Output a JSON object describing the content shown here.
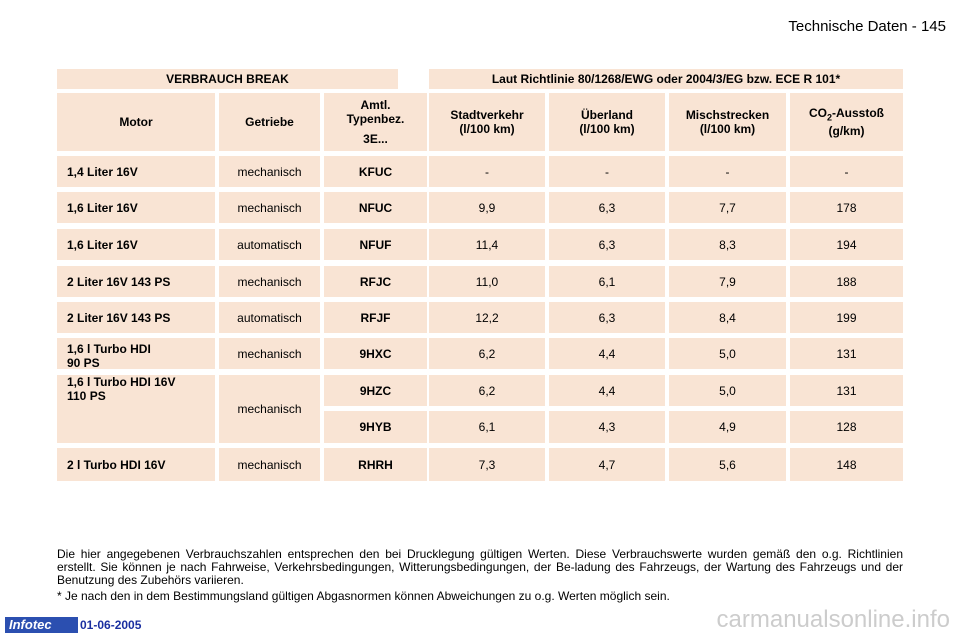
{
  "header": {
    "page_title": "Technische Daten - 145"
  },
  "table": {
    "title": "VERBRAUCH BREAK",
    "standard": "Laut Richtlinie 80/1268/EWG oder 2004/3/EG bzw. ECE R 101*",
    "col_motor": "Motor",
    "col_getriebe": "Getriebe",
    "col_typ_1": "Amtl.",
    "col_typ_2": "Typenbez.",
    "col_typ_3": "3E...",
    "col_stadt_1": "Stadtverkehr",
    "col_stadt_2": "(l/100 km)",
    "col_ueberland_1": "Überland",
    "col_ueberland_2": "(l/100 km)",
    "col_misch_1": "Mischstrecken",
    "col_misch_2": "(l/100 km)",
    "col_co2_pre": "CO",
    "col_co2_sub": "2",
    "col_co2_post": "-Ausstoß",
    "col_co2_2": "(g/km)",
    "rows": [
      {
        "motor": "1,4 Liter 16V",
        "getriebe": "mechanisch",
        "typ": "KFUC",
        "stadt": "-",
        "ueberland": "-",
        "misch": "-",
        "co2": "-"
      },
      {
        "motor": "1,6 Liter 16V",
        "getriebe": "mechanisch",
        "typ": "NFUC",
        "stadt": "9,9",
        "ueberland": "6,3",
        "misch": "7,7",
        "co2": "178"
      },
      {
        "motor": "1,6 Liter 16V",
        "getriebe": "automatisch",
        "typ": "NFUF",
        "stadt": "11,4",
        "ueberland": "6,3",
        "misch": "8,3",
        "co2": "194"
      },
      {
        "motor": "2 Liter 16V 143 PS",
        "getriebe": "mechanisch",
        "typ": "RFJC",
        "stadt": "11,0",
        "ueberland": "6,1",
        "misch": "7,9",
        "co2": "188"
      },
      {
        "motor": "2 Liter 16V 143 PS",
        "getriebe": "automatisch",
        "typ": "RFJF",
        "stadt": "12,2",
        "ueberland": "6,3",
        "misch": "8,4",
        "co2": "199"
      },
      {
        "motor_1": "1,6 l Turbo HDI",
        "motor_2": "90 PS",
        "getriebe": "mechanisch",
        "typ": "9HXC",
        "stadt": "6,2",
        "ueberland": "4,4",
        "misch": "5,0",
        "co2": "131"
      },
      {
        "motor_1": "1,6 l Turbo HDI 16V",
        "motor_2": "110 PS",
        "getriebe": "mechanisch",
        "typ": "9HZC",
        "stadt": "6,2",
        "ueberland": "4,4",
        "misch": "5,0",
        "co2": "131"
      },
      {
        "typ": "9HYB",
        "stadt": "6,1",
        "ueberland": "4,3",
        "misch": "4,9",
        "co2": "128"
      },
      {
        "motor": "2 l Turbo HDI 16V",
        "getriebe": "mechanisch",
        "typ": "RHRH",
        "stadt": "7,3",
        "ueberland": "4,7",
        "misch": "5,6",
        "co2": "148"
      }
    ]
  },
  "footnotes": {
    "p1": "Die hier angegebenen Verbrauchszahlen entsprechen den bei Drucklegung gültigen Werten. Diese Verbrauchswerte wurden gemäß den o.g. Richtlinien erstellt. Sie können je nach Fahrweise, Verkehrsbedingungen, Witterungsbedingungen, der Be-ladung des Fahrzeugs, der Wartung des Fahrzeugs und der Benutzung des Zubehörs variieren.",
    "p2": "* Je nach den in dem Bestimmungsland gültigen Abgasnormen können Abweichungen zu o.g. Werten möglich sein."
  },
  "footer": {
    "brand": "Infotec",
    "date": "01-06-2005",
    "watermark": "carmanualsonline.info"
  }
}
